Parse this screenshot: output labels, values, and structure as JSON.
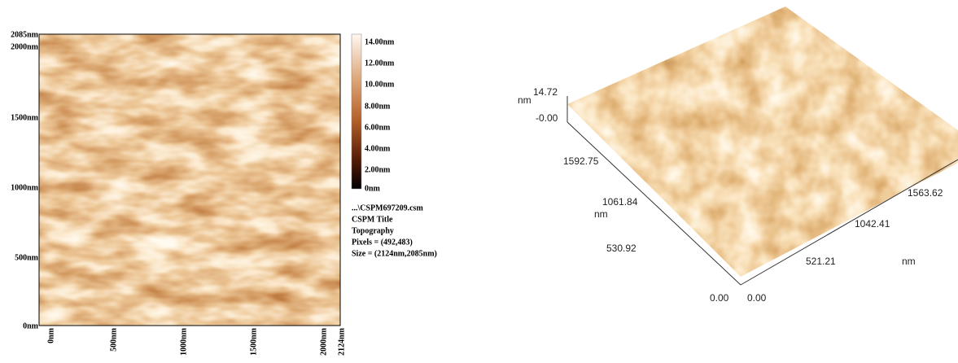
{
  "left_panel": {
    "y_ticks": [
      "2085nm",
      "2000nm",
      "1500nm",
      "1000nm",
      "500nm",
      "0nm"
    ],
    "x_ticks": [
      "0nm",
      "500nm",
      "1000nm",
      "1500nm",
      "2000nm",
      "2124nm"
    ],
    "colorbar_ticks": [
      "14.00nm",
      "12.00nm",
      "10.00nm",
      "8.00nm",
      "6.00nm",
      "4.00nm",
      "2.00nm",
      "0nm"
    ],
    "info": [
      "...\\CSPM697209.csm",
      "CSPM Title",
      "Topography",
      "Pixels = (492,483)",
      "Size = (2124nm,2085nm)"
    ]
  },
  "right_panel": {
    "z_unit": "nm",
    "z_ticks": [
      "14.72",
      "-0.00"
    ],
    "y_ticks": [
      "1592.75",
      "1061.84",
      "530.92",
      "0.00"
    ],
    "y_unit": "nm",
    "x_ticks": [
      "0.00",
      "521.21",
      "1042.41",
      "1563.62"
    ],
    "x_unit": "nm"
  }
}
